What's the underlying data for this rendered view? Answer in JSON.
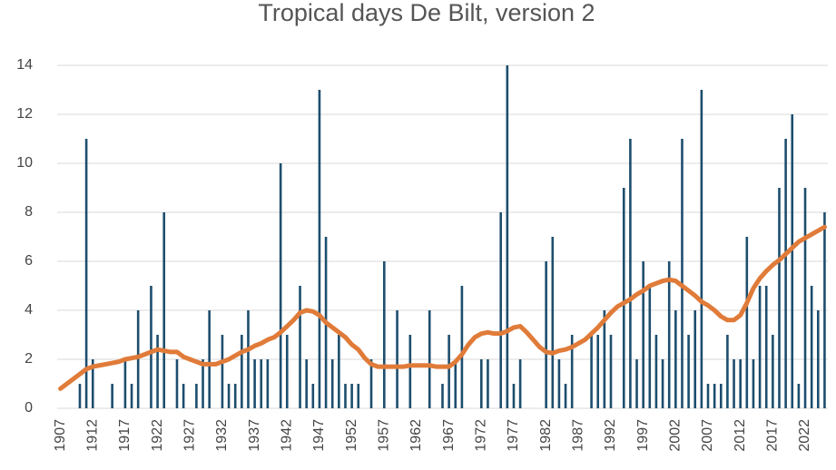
{
  "chart_data": {
    "type": "bar",
    "title": "Tropical days De Bilt, version 2",
    "x": [
      1907,
      1908,
      1909,
      1910,
      1911,
      1912,
      1913,
      1914,
      1915,
      1916,
      1917,
      1918,
      1919,
      1920,
      1921,
      1922,
      1923,
      1924,
      1925,
      1926,
      1927,
      1928,
      1929,
      1930,
      1931,
      1932,
      1933,
      1934,
      1935,
      1936,
      1937,
      1938,
      1939,
      1940,
      1941,
      1942,
      1943,
      1944,
      1945,
      1946,
      1947,
      1948,
      1949,
      1950,
      1951,
      1952,
      1953,
      1954,
      1955,
      1956,
      1957,
      1958,
      1959,
      1960,
      1961,
      1962,
      1963,
      1964,
      1965,
      1966,
      1967,
      1968,
      1969,
      1970,
      1971,
      1972,
      1973,
      1974,
      1975,
      1976,
      1977,
      1978,
      1979,
      1980,
      1981,
      1982,
      1983,
      1984,
      1985,
      1986,
      1987,
      1988,
      1989,
      1990,
      1991,
      1992,
      1993,
      1994,
      1995,
      1996,
      1997,
      1998,
      1999,
      2000,
      2001,
      2002,
      2003,
      2004,
      2005,
      2006,
      2007,
      2008,
      2009,
      2010,
      2011,
      2012,
      2013,
      2014,
      2015,
      2016,
      2017,
      2018,
      2019,
      2020,
      2021,
      2022,
      2023,
      2024,
      2025
    ],
    "series": [
      {
        "type": "bar",
        "color": "#1d4e6e",
        "values": [
          0,
          0,
          0,
          1,
          11,
          2,
          0,
          0,
          1,
          0,
          2,
          1,
          4,
          0,
          5,
          3,
          8,
          0,
          2,
          1,
          0,
          1,
          2,
          4,
          0,
          3,
          1,
          1,
          3,
          4,
          2,
          2,
          2,
          0,
          10,
          3,
          0,
          5,
          2,
          1,
          13,
          7,
          2,
          3,
          1,
          1,
          1,
          0,
          2,
          0,
          6,
          0,
          4,
          0,
          3,
          0,
          0,
          4,
          0,
          1,
          3,
          2,
          5,
          0,
          0,
          2,
          2,
          0,
          8,
          14,
          1,
          2,
          0,
          0,
          0,
          6,
          7,
          2,
          1,
          3,
          0,
          0,
          3,
          3,
          4,
          3,
          0,
          9,
          11,
          2,
          6,
          5,
          3,
          2,
          6,
          4,
          11,
          3,
          4,
          13,
          1,
          1,
          1,
          3,
          2,
          2,
          7,
          2,
          5,
          5,
          3,
          9,
          11,
          12,
          1,
          9,
          5,
          4,
          8
        ]
      },
      {
        "type": "line",
        "color": "#e07b39",
        "values": [
          0.8,
          1.0,
          1.2,
          1.4,
          1.6,
          1.7,
          1.75,
          1.8,
          1.85,
          1.9,
          2.0,
          2.05,
          2.1,
          2.2,
          2.3,
          2.4,
          2.35,
          2.3,
          2.3,
          2.1,
          2.0,
          1.9,
          1.8,
          1.8,
          1.8,
          1.9,
          2.0,
          2.15,
          2.3,
          2.4,
          2.55,
          2.65,
          2.8,
          2.9,
          3.1,
          3.35,
          3.6,
          3.9,
          4.0,
          3.95,
          3.8,
          3.5,
          3.3,
          3.1,
          2.9,
          2.6,
          2.4,
          2.05,
          1.8,
          1.7,
          1.7,
          1.7,
          1.7,
          1.7,
          1.75,
          1.75,
          1.75,
          1.75,
          1.7,
          1.7,
          1.7,
          1.9,
          2.2,
          2.6,
          2.9,
          3.05,
          3.1,
          3.05,
          3.05,
          3.15,
          3.3,
          3.35,
          3.1,
          2.8,
          2.5,
          2.3,
          2.25,
          2.35,
          2.4,
          2.5,
          2.65,
          2.8,
          3.05,
          3.3,
          3.6,
          3.9,
          4.15,
          4.3,
          4.45,
          4.65,
          4.8,
          5.0,
          5.1,
          5.2,
          5.25,
          5.2,
          5.0,
          4.8,
          4.6,
          4.35,
          4.2,
          4.0,
          3.75,
          3.6,
          3.6,
          3.8,
          4.3,
          4.9,
          5.3,
          5.6,
          5.85,
          6.05,
          6.3,
          6.55,
          6.8,
          6.95,
          7.1,
          7.25,
          7.4
        ]
      }
    ],
    "xlim": [
      1906.5,
      2025.5
    ],
    "xticks": [
      1907,
      1912,
      1917,
      1922,
      1927,
      1932,
      1937,
      1942,
      1947,
      1952,
      1957,
      1962,
      1967,
      1972,
      1977,
      1982,
      1987,
      1992,
      1997,
      2002,
      2007,
      2012,
      2017,
      2022
    ],
    "ylim": [
      0,
      14
    ],
    "yticks": [
      0,
      2,
      4,
      6,
      8,
      10,
      12,
      14
    ],
    "grid": true
  }
}
